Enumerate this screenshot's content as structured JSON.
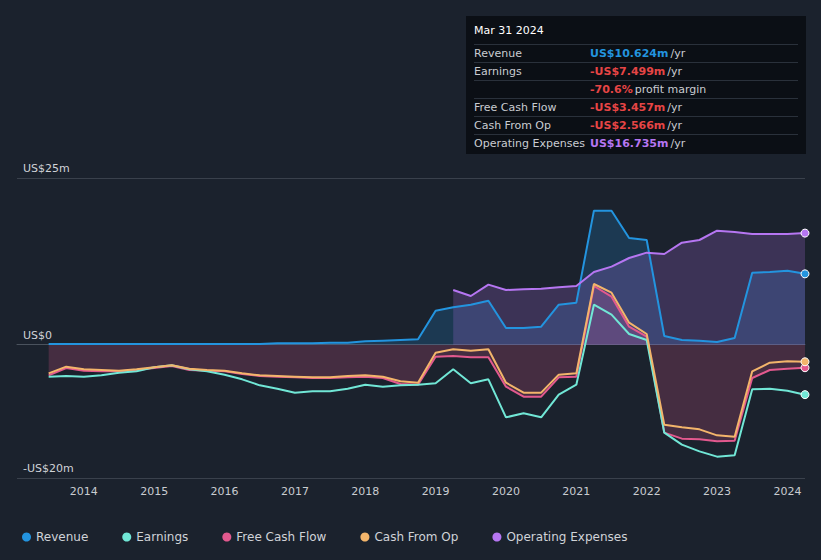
{
  "chart_data": {
    "type": "line",
    "x": [
      2013.5,
      2013.75,
      2014,
      2014.25,
      2014.5,
      2014.75,
      2015,
      2015.25,
      2015.5,
      2015.75,
      2016,
      2016.25,
      2016.5,
      2016.75,
      2017,
      2017.25,
      2017.5,
      2017.75,
      2018,
      2018.25,
      2018.5,
      2018.75,
      2019,
      2019.25,
      2019.5,
      2019.75,
      2020,
      2020.25,
      2020.5,
      2020.75,
      2021,
      2021.25,
      2021.5,
      2021.75,
      2022,
      2022.25,
      2022.5,
      2022.75,
      2023,
      2023.25,
      2023.5,
      2023.75,
      2024,
      2024.25
    ],
    "series": [
      {
        "name": "Revenue",
        "color": "#2394df",
        "type": "area",
        "values": [
          0.1,
          0.1,
          0.1,
          0.1,
          0.1,
          0.1,
          0.1,
          0.1,
          0.1,
          0.1,
          0.1,
          0.1,
          0.1,
          0.2,
          0.2,
          0.2,
          0.3,
          0.3,
          0.5,
          0.6,
          0.7,
          0.8,
          5.1,
          5.6,
          6.0,
          6.6,
          2.5,
          2.5,
          2.7,
          6.0,
          6.3,
          20.1,
          20.1,
          16.0,
          15.7,
          1.3,
          0.7,
          0.6,
          0.4,
          1.0,
          10.8,
          10.9,
          11.1,
          10.624
        ]
      },
      {
        "name": "Earnings",
        "color": "#71e7d6",
        "type": "line",
        "values": [
          -4.8,
          -4.7,
          -4.8,
          -4.6,
          -4.2,
          -4.0,
          -3.4,
          -3.1,
          -3.7,
          -4.0,
          -4.5,
          -5.2,
          -6.1,
          -6.6,
          -7.2,
          -7.0,
          -7.0,
          -6.6,
          -6.0,
          -6.3,
          -6.1,
          -6.0,
          -5.8,
          -3.7,
          -5.8,
          -5.2,
          -10.9,
          -10.3,
          -10.9,
          -7.5,
          -6.0,
          6.0,
          4.5,
          1.6,
          0.7,
          -13.2,
          -15.0,
          -16.0,
          -16.8,
          -16.6,
          -6.7,
          -6.6,
          -6.9,
          -7.499
        ]
      },
      {
        "name": "Free Cash Flow",
        "color": "#e2598e",
        "type": "area",
        "values": [
          -4.6,
          -3.5,
          -3.9,
          -4.0,
          -4.0,
          -3.8,
          -3.5,
          -3.2,
          -3.8,
          -3.9,
          -4.0,
          -4.4,
          -4.7,
          -4.8,
          -4.9,
          -5.0,
          -5.0,
          -4.9,
          -4.8,
          -5.0,
          -5.9,
          -6.0,
          -1.8,
          -1.7,
          -1.9,
          -1.9,
          -6.3,
          -7.8,
          -7.8,
          -4.9,
          -4.8,
          8.8,
          7.2,
          2.7,
          1.2,
          -13.2,
          -14.1,
          -14.2,
          -14.5,
          -14.4,
          -5.0,
          -3.8,
          -3.6,
          -3.457
        ]
      },
      {
        "name": "Cash From Op",
        "color": "#f3b56b",
        "type": "line",
        "values": [
          -4.3,
          -3.3,
          -3.7,
          -3.8,
          -3.9,
          -3.7,
          -3.4,
          -3.1,
          -3.6,
          -3.8,
          -3.9,
          -4.3,
          -4.6,
          -4.7,
          -4.8,
          -4.9,
          -4.9,
          -4.7,
          -4.6,
          -4.8,
          -5.5,
          -5.7,
          -1.2,
          -0.7,
          -0.9,
          -0.7,
          -5.7,
          -7.2,
          -7.2,
          -4.5,
          -4.3,
          9.1,
          7.8,
          3.3,
          1.6,
          -12.0,
          -12.4,
          -12.7,
          -13.6,
          -13.8,
          -4.0,
          -2.7,
          -2.5,
          -2.566
        ]
      },
      {
        "name": "Operating Expenses",
        "color": "#b676f2",
        "type": "area",
        "values": [
          null,
          null,
          null,
          null,
          null,
          null,
          null,
          null,
          null,
          null,
          null,
          null,
          null,
          null,
          null,
          null,
          null,
          null,
          null,
          null,
          null,
          null,
          null,
          8.2,
          7.3,
          9.0,
          8.2,
          8.3,
          8.4,
          8.6,
          8.8,
          10.9,
          11.7,
          13.0,
          13.8,
          13.6,
          15.3,
          15.7,
          17.1,
          16.9,
          16.6,
          16.6,
          16.6,
          16.735
        ]
      }
    ],
    "xlim": [
      2013.05,
      2024.25
    ],
    "xticks": [
      2014,
      2015,
      2016,
      2017,
      2018,
      2019,
      2020,
      2021,
      2022,
      2023,
      2024
    ],
    "ylim": [
      -20,
      25
    ],
    "yticks": [
      {
        "value": -20,
        "label": "-US$20m"
      },
      {
        "value": 0,
        "label": "US$0"
      },
      {
        "value": 25,
        "label": "US$25m"
      }
    ],
    "grid": true,
    "legend": "bottom-left"
  },
  "info_box": {
    "title": "Mar 31 2024",
    "rows": [
      {
        "label": "Revenue",
        "value": "US$10.624m",
        "unit": "/yr",
        "color": "#2394df"
      },
      {
        "label": "Earnings",
        "value": "-US$7.499m",
        "unit": "/yr",
        "color": "#e64545"
      },
      {
        "value": "-70.6%",
        "unit": "profit margin",
        "color": "#e64545"
      },
      {
        "label": "Free Cash Flow",
        "value": "-US$3.457m",
        "unit": "/yr",
        "color": "#e64545"
      },
      {
        "label": "Cash From Op",
        "value": "-US$2.566m",
        "unit": "/yr",
        "color": "#e64545"
      },
      {
        "label": "Operating Expenses",
        "value": "US$16.735m",
        "unit": "/yr",
        "color": "#b676f2"
      }
    ]
  }
}
